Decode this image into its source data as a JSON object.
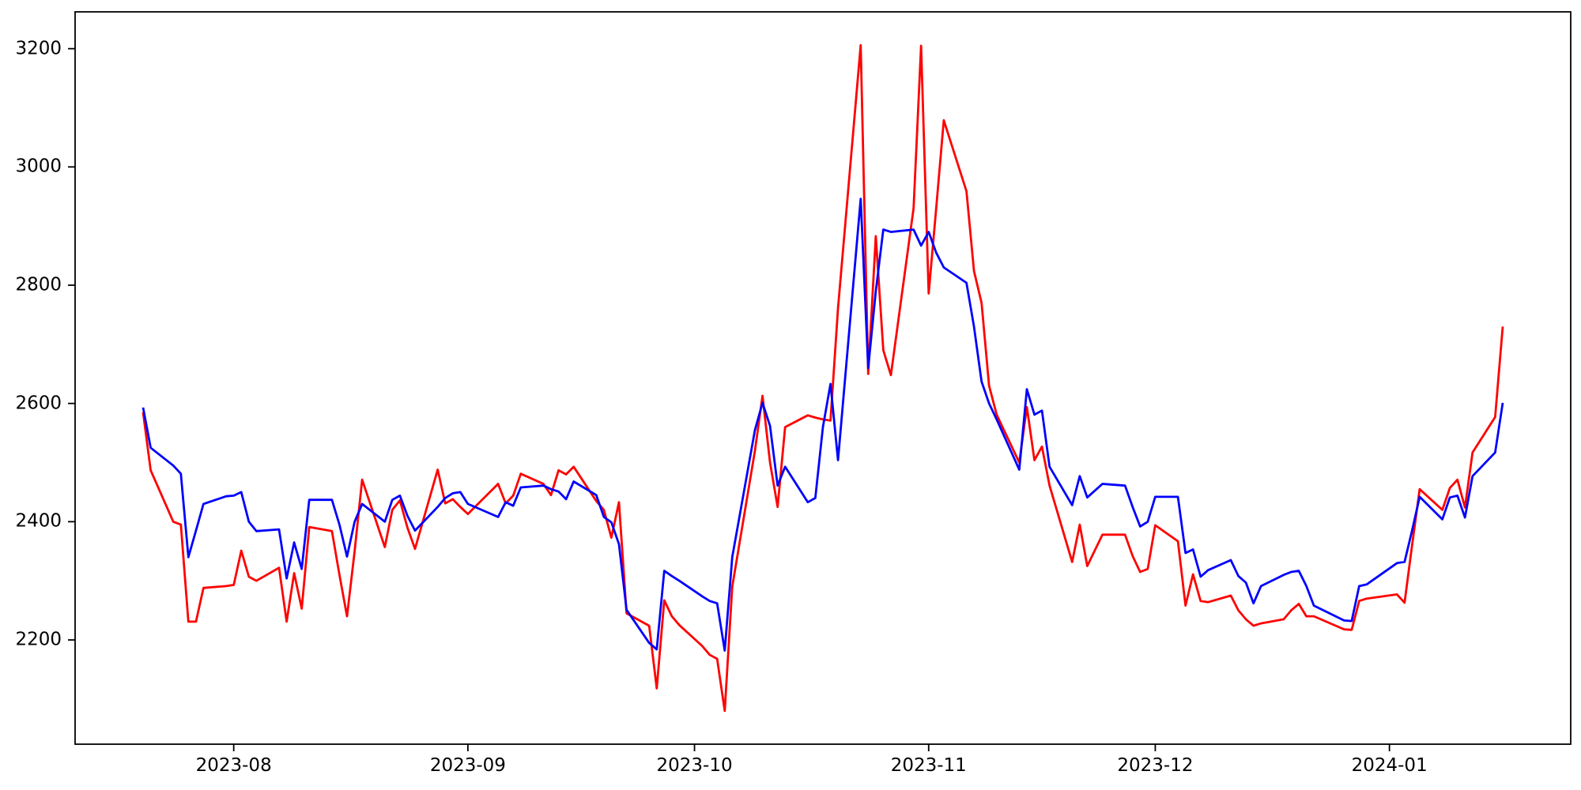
{
  "chart_data": {
    "type": "line",
    "title": "",
    "xlabel": "",
    "ylabel": "",
    "background_color": "#ffffff",
    "axis_color": "#000000",
    "grid": false,
    "legend": null,
    "ylim": [
      2023.7,
      3262.3
    ],
    "xlim": [
      "2023-07-11",
      "2024-01-25"
    ],
    "yticks": [
      2200,
      2400,
      2600,
      2800,
      3000,
      3200
    ],
    "xticks": [
      {
        "label": "2023-08",
        "date": "2023-08-01"
      },
      {
        "label": "2023-09",
        "date": "2023-09-01"
      },
      {
        "label": "2023-10",
        "date": "2023-10-01"
      },
      {
        "label": "2023-11",
        "date": "2023-11-01"
      },
      {
        "label": "2023-12",
        "date": "2023-12-01"
      },
      {
        "label": "2024-01",
        "date": "2024-01-01"
      }
    ],
    "x": [
      "2023-07-20",
      "2023-07-21",
      "2023-07-24",
      "2023-07-25",
      "2023-07-26",
      "2023-07-27",
      "2023-07-28",
      "2023-07-31",
      "2023-08-01",
      "2023-08-02",
      "2023-08-03",
      "2023-08-04",
      "2023-08-07",
      "2023-08-08",
      "2023-08-09",
      "2023-08-10",
      "2023-08-11",
      "2023-08-14",
      "2023-08-15",
      "2023-08-16",
      "2023-08-17",
      "2023-08-18",
      "2023-08-21",
      "2023-08-22",
      "2023-08-23",
      "2023-08-24",
      "2023-08-25",
      "2023-08-28",
      "2023-08-29",
      "2023-08-30",
      "2023-08-31",
      "2023-09-01",
      "2023-09-05",
      "2023-09-06",
      "2023-09-07",
      "2023-09-08",
      "2023-09-11",
      "2023-09-12",
      "2023-09-13",
      "2023-09-14",
      "2023-09-15",
      "2023-09-18",
      "2023-09-19",
      "2023-09-20",
      "2023-09-21",
      "2023-09-22",
      "2023-09-25",
      "2023-09-26",
      "2023-09-27",
      "2023-09-28",
      "2023-09-29",
      "2023-10-02",
      "2023-10-03",
      "2023-10-04",
      "2023-10-05",
      "2023-10-06",
      "2023-10-09",
      "2023-10-10",
      "2023-10-11",
      "2023-10-12",
      "2023-10-13",
      "2023-10-16",
      "2023-10-17",
      "2023-10-18",
      "2023-10-19",
      "2023-10-20",
      "2023-10-23",
      "2023-10-24",
      "2023-10-25",
      "2023-10-26",
      "2023-10-27",
      "2023-10-30",
      "2023-10-31",
      "2023-11-01",
      "2023-11-02",
      "2023-11-03",
      "2023-11-06",
      "2023-11-07",
      "2023-11-08",
      "2023-11-09",
      "2023-11-10",
      "2023-11-13",
      "2023-11-14",
      "2023-11-15",
      "2023-11-16",
      "2023-11-17",
      "2023-11-20",
      "2023-11-21",
      "2023-11-22",
      "2023-11-24",
      "2023-11-27",
      "2023-11-28",
      "2023-11-29",
      "2023-11-30",
      "2023-12-01",
      "2023-12-04",
      "2023-12-05",
      "2023-12-06",
      "2023-12-07",
      "2023-12-08",
      "2023-12-11",
      "2023-12-12",
      "2023-12-13",
      "2023-12-14",
      "2023-12-15",
      "2023-12-18",
      "2023-12-19",
      "2023-12-20",
      "2023-12-21",
      "2023-12-22",
      "2023-12-26",
      "2023-12-27",
      "2023-12-28",
      "2023-12-29",
      "2024-01-02",
      "2024-01-03",
      "2024-01-04",
      "2024-01-05",
      "2024-01-08",
      "2024-01-09",
      "2024-01-10",
      "2024-01-11",
      "2024-01-12",
      "2024-01-15",
      "2024-01-16"
    ],
    "series": [
      {
        "name": "red-series",
        "color": "#ff0000",
        "values": [
          2585,
          2487,
          2400,
          2395,
          2231,
          2231,
          2288,
          2291,
          2293,
          2351,
          2307,
          2300,
          2322,
          2231,
          2313,
          2253,
          2391,
          2384,
          2310,
          2240,
          2350,
          2471,
          2357,
          2420,
          2436,
          2390,
          2354,
          2488,
          2431,
          2438,
          2425,
          2413,
          2464,
          2431,
          2444,
          2481,
          2464,
          2445,
          2487,
          2480,
          2493,
          2435,
          2420,
          2373,
          2433,
          2245,
          2224,
          2118,
          2267,
          2240,
          2225,
          2190,
          2175,
          2168,
          2080,
          2290,
          2520,
          2613,
          2500,
          2425,
          2560,
          2580,
          2576,
          2573,
          2571,
          2761,
          3206,
          2650,
          2883,
          2690,
          2648,
          2930,
          3205,
          2786,
          2930,
          3079,
          2959,
          2824,
          2770,
          2630,
          2581,
          2500,
          2594,
          2504,
          2527,
          2461,
          2332,
          2395,
          2325,
          2378,
          2378,
          2342,
          2315,
          2320,
          2394,
          2367,
          2258,
          2311,
          2266,
          2264,
          2275,
          2250,
          2235,
          2224,
          2228,
          2235,
          2250,
          2261,
          2240,
          2240,
          2218,
          2217,
          2266,
          2270,
          2277,
          2263,
          2360,
          2455,
          2420,
          2457,
          2471,
          2424,
          2517,
          2577,
          2730
        ]
      },
      {
        "name": "blue-series",
        "color": "#0000ff",
        "values": [
          2593,
          2525,
          2495,
          2481,
          2340,
          2385,
          2430,
          2443,
          2444,
          2450,
          2400,
          2384,
          2387,
          2304,
          2365,
          2320,
          2437,
          2437,
          2395,
          2341,
          2400,
          2430,
          2400,
          2437,
          2444,
          2410,
          2385,
          2425,
          2440,
          2448,
          2450,
          2430,
          2408,
          2433,
          2427,
          2458,
          2461,
          2455,
          2451,
          2438,
          2468,
          2445,
          2408,
          2399,
          2362,
          2251,
          2195,
          2184,
          2317,
          2308,
          2300,
          2274,
          2266,
          2262,
          2182,
          2340,
          2555,
          2601,
          2562,
          2461,
          2493,
          2433,
          2440,
          2560,
          2633,
          2504,
          2946,
          2660,
          2790,
          2894,
          2890,
          2894,
          2867,
          2890,
          2855,
          2830,
          2804,
          2730,
          2637,
          2600,
          2573,
          2488,
          2624,
          2581,
          2588,
          2493,
          2428,
          2477,
          2441,
          2464,
          2461,
          2425,
          2392,
          2400,
          2442,
          2442,
          2347,
          2353,
          2307,
          2318,
          2335,
          2308,
          2297,
          2262,
          2291,
          2310,
          2315,
          2317,
          2291,
          2258,
          2233,
          2232,
          2291,
          2294,
          2330,
          2332,
          2385,
          2442,
          2404,
          2441,
          2444,
          2407,
          2477,
          2517,
          2601
        ]
      }
    ]
  }
}
